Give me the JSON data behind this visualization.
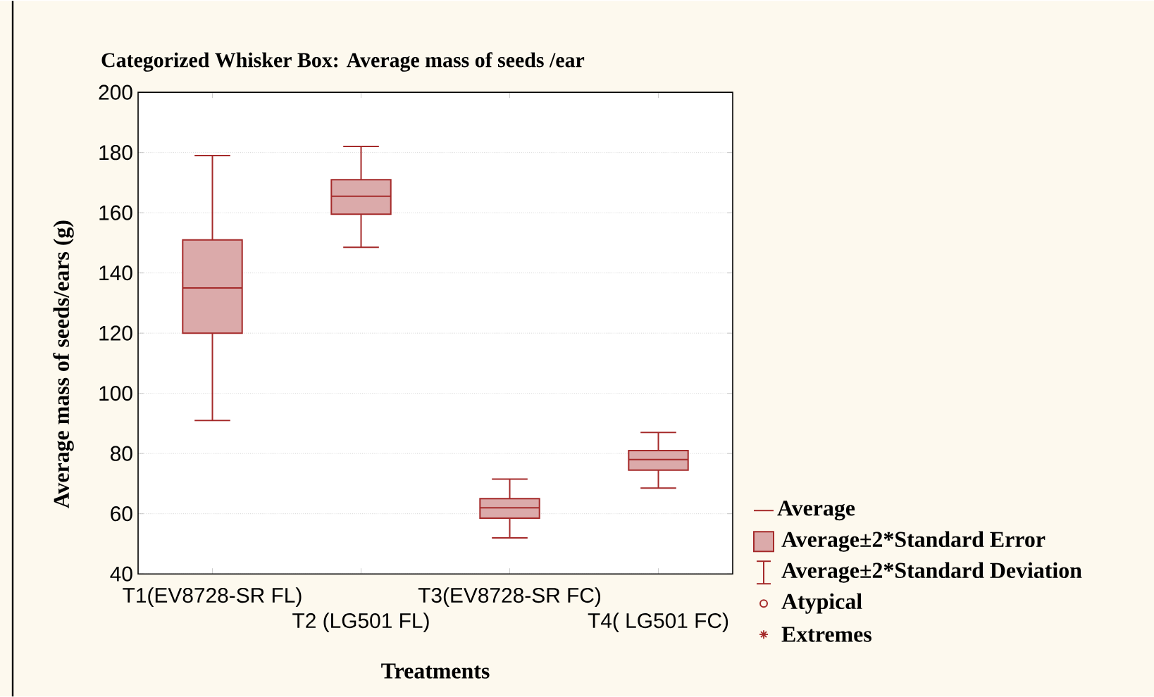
{
  "chart_data": {
    "type": "box",
    "title": "Categorized Whisker Box: Average mass of seeds /ear",
    "xlabel": "Treatments",
    "ylabel": "Average mass of seeds/ears (g)",
    "categories": [
      "T1(EV8728-SR FL)",
      "T2 (LG501 FL)",
      "T3(EV8728-SR FC)",
      "T4( LG501 FC)"
    ],
    "boxes": [
      {
        "low": 91,
        "q1": 120,
        "median": 135,
        "q3": 151,
        "high": 179
      },
      {
        "low": 148.5,
        "q1": 159.5,
        "median": 165.5,
        "q3": 171,
        "high": 182
      },
      {
        "low": 52,
        "q1": 58.5,
        "median": 62,
        "q3": 65,
        "high": 71.5
      },
      {
        "low": 68.5,
        "q1": 74.5,
        "median": 78,
        "q3": 81,
        "high": 87
      }
    ],
    "color": "#a52a2a",
    "ylim": [
      40,
      200
    ],
    "yticks": [
      40,
      60,
      80,
      100,
      120,
      140,
      160,
      180,
      200
    ],
    "grid": "y",
    "annotations": [
      "Average",
      "Average±2*Standard Error",
      "Average±2*Standard Deviation",
      "Atypical",
      "Extremes"
    ]
  }
}
